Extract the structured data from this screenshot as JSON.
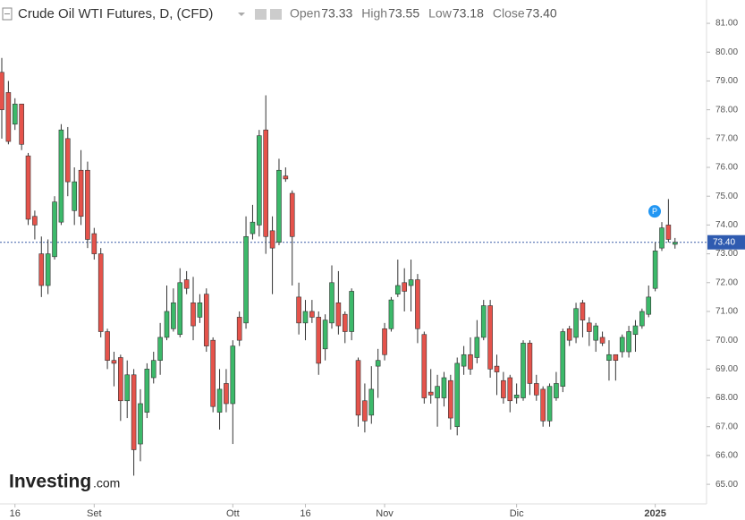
{
  "chart_data": {
    "type": "candlestick",
    "title": "Crude Oil WTI Futures, D, (CFD)",
    "header": {
      "open_label": "Open",
      "open": "73.33",
      "high_label": "High",
      "high": "73.55",
      "low_label": "Low",
      "low": "73.18",
      "close_label": "Close",
      "close": "73.40"
    },
    "up_color": "#3cb96a",
    "down_color": "#e5534b",
    "categories": [
      null,
      null,
      "16",
      null,
      null,
      null,
      null,
      null,
      null,
      null,
      null,
      null,
      null,
      null,
      "Set",
      null,
      null,
      null,
      null,
      null,
      null,
      null,
      null,
      null,
      null,
      null,
      null,
      null,
      null,
      null,
      null,
      null,
      null,
      null,
      null,
      "Ott",
      null,
      null,
      null,
      null,
      null,
      null,
      null,
      null,
      null,
      null,
      "16",
      null,
      null,
      null,
      null,
      null,
      null,
      null,
      null,
      null,
      null,
      null,
      "Nov",
      null,
      null,
      null,
      null,
      null,
      null,
      null,
      null,
      null,
      null,
      null,
      null,
      null,
      null,
      null,
      null,
      null,
      null,
      null,
      "Dic",
      null,
      null,
      null,
      null,
      null,
      null,
      null,
      null,
      null,
      null,
      null,
      null,
      null,
      null,
      null,
      null,
      null,
      null,
      null,
      null,
      "2025",
      null,
      null,
      null
    ],
    "open": [
      79.3,
      78.6,
      77.5,
      78.2,
      76.4,
      74.3,
      73.0,
      71.9,
      72.9,
      74.1,
      77.0,
      74.5,
      75.9,
      75.9,
      73.7,
      73.0,
      70.3,
      69.3,
      69.4,
      67.9,
      68.8,
      66.4,
      67.5,
      68.7,
      69.3,
      70.1,
      70.4,
      70.2,
      72.1,
      71.3,
      70.8,
      71.6,
      70.0,
      67.5,
      68.5,
      67.8,
      70.8,
      70.6,
      73.7,
      74.0,
      77.3,
      73.8,
      73.4,
      75.7,
      75.1,
      71.5,
      70.6,
      71.0,
      70.8,
      69.7,
      70.6,
      71.3,
      70.9,
      70.3,
      69.3,
      67.9,
      67.4,
      69.1,
      70.4,
      70.4,
      71.6,
      72.0,
      71.9,
      72.1,
      70.2,
      68.2,
      68.0,
      68.0,
      68.6,
      67.0,
      69.1,
      69.5,
      69.4,
      70.1,
      71.2,
      69.1,
      68.6,
      68.7,
      68.0,
      68.0,
      69.9,
      68.5,
      68.3,
      67.2,
      68.0,
      68.4,
      70.4,
      70.1,
      71.3,
      70.6,
      70.0,
      70.1,
      69.3,
      69.5,
      69.6,
      69.6,
      70.2,
      70.5,
      70.9,
      71.8,
      73.2,
      74.0,
      73.33
    ],
    "high": [
      79.8,
      79.0,
      78.4,
      78.2,
      76.5,
      74.5,
      73.6,
      73.5,
      75.0,
      77.5,
      77.4,
      76.0,
      76.6,
      76.2,
      73.9,
      73.2,
      70.4,
      69.6,
      69.5,
      69.3,
      69.0,
      68.3,
      69.2,
      69.6,
      70.6,
      71.9,
      71.8,
      72.5,
      72.4,
      72.2,
      71.6,
      71.8,
      70.1,
      69.0,
      69.0,
      70.0,
      71.0,
      74.3,
      74.7,
      77.3,
      78.5,
      74.3,
      76.3,
      76.0,
      75.2,
      72.0,
      71.4,
      71.4,
      71.0,
      70.9,
      72.6,
      72.4,
      71.0,
      71.8,
      69.4,
      68.5,
      69.1,
      69.7,
      70.6,
      71.5,
      72.8,
      72.5,
      72.8,
      72.3,
      70.3,
      69.0,
      68.8,
      68.9,
      68.8,
      69.4,
      69.8,
      70.1,
      70.7,
      71.4,
      71.4,
      69.5,
      68.9,
      68.8,
      68.5,
      70.0,
      70.0,
      68.8,
      68.4,
      68.5,
      68.9,
      70.4,
      70.5,
      71.3,
      71.4,
      70.8,
      70.6,
      70.3,
      70.0,
      69.5,
      70.2,
      70.5,
      70.7,
      71.1,
      71.9,
      73.4,
      74.1,
      74.9,
      73.55
    ],
    "low": [
      77.0,
      76.8,
      77.3,
      76.6,
      74.0,
      73.5,
      71.5,
      71.6,
      72.8,
      74.0,
      75.0,
      74.0,
      74.0,
      73.2,
      72.8,
      70.1,
      69.0,
      68.4,
      67.2,
      67.3,
      65.3,
      65.8,
      67.3,
      68.5,
      68.8,
      70.0,
      70.3,
      70.1,
      71.6,
      70.0,
      70.6,
      69.6,
      67.5,
      66.9,
      67.5,
      66.4,
      69.8,
      70.4,
      73.5,
      73.6,
      73.0,
      71.6,
      73.3,
      75.5,
      71.9,
      70.2,
      70.0,
      70.6,
      68.8,
      69.3,
      70.4,
      70.2,
      69.9,
      70.0,
      67.0,
      66.8,
      67.1,
      68.0,
      69.3,
      70.3,
      71.5,
      71.0,
      71.0,
      69.9,
      67.8,
      67.8,
      67.0,
      67.7,
      66.9,
      66.7,
      68.8,
      68.8,
      69.2,
      70.0,
      68.7,
      68.1,
      67.8,
      67.5,
      67.8,
      67.9,
      68.1,
      67.9,
      67.0,
      67.0,
      67.9,
      68.2,
      69.8,
      69.9,
      70.1,
      69.8,
      69.6,
      69.8,
      68.6,
      68.6,
      69.4,
      69.4,
      69.6,
      70.4,
      70.8,
      71.7,
      73.1,
      73.4,
      73.18
    ],
    "close": [
      78.0,
      76.9,
      78.2,
      76.8,
      74.2,
      74.0,
      71.9,
      73.0,
      74.8,
      77.3,
      75.5,
      75.5,
      74.3,
      73.5,
      73.0,
      70.3,
      69.3,
      69.2,
      67.9,
      68.8,
      66.2,
      67.8,
      69.0,
      69.3,
      70.1,
      71.0,
      71.3,
      72.0,
      71.8,
      70.5,
      71.3,
      69.8,
      67.7,
      68.3,
      67.8,
      69.8,
      70.0,
      73.6,
      74.1,
      77.1,
      73.6,
      73.2,
      75.9,
      75.6,
      73.6,
      70.6,
      71.0,
      70.8,
      69.2,
      70.7,
      72.0,
      70.5,
      70.3,
      71.7,
      67.4,
      67.2,
      68.3,
      69.3,
      69.5,
      71.4,
      71.9,
      71.7,
      72.1,
      70.4,
      68.0,
      68.1,
      68.4,
      68.7,
      67.3,
      69.2,
      69.5,
      69.0,
      70.1,
      71.2,
      69.0,
      68.9,
      68.0,
      67.9,
      68.1,
      69.9,
      68.5,
      68.1,
      67.2,
      68.4,
      68.5,
      70.3,
      70.0,
      71.1,
      70.7,
      70.3,
      70.5,
      69.9,
      69.5,
      69.3,
      70.1,
      70.3,
      70.5,
      71.0,
      71.5,
      73.1,
      73.9,
      73.5,
      73.4
    ],
    "last_price": 73.4,
    "last_price_label": "73.40",
    "annotation": "P",
    "watermark": {
      "brand": "Investing",
      "suffix": ".com"
    },
    "ylim": [
      64.32,
      81.81
    ],
    "yticks": [
      {
        "value": 65,
        "label": "65.00"
      },
      {
        "value": 66,
        "label": "66.00"
      },
      {
        "value": 67,
        "label": "67.00"
      },
      {
        "value": 68,
        "label": "68.00"
      },
      {
        "value": 69,
        "label": "69.00"
      },
      {
        "value": 70,
        "label": "70.00"
      },
      {
        "value": 71,
        "label": "71.00"
      },
      {
        "value": 72,
        "label": "72.00"
      },
      {
        "value": 73,
        "label": "73.00"
      },
      {
        "value": 74,
        "label": "74.00"
      },
      {
        "value": 75,
        "label": "75.00"
      },
      {
        "value": 76,
        "label": "76.00"
      },
      {
        "value": 77,
        "label": "77.00"
      },
      {
        "value": 78,
        "label": "78.00"
      },
      {
        "value": 79,
        "label": "79.00"
      },
      {
        "value": 80,
        "label": "80.00"
      },
      {
        "value": 81,
        "label": "81.00"
      }
    ],
    "grid": false
  }
}
